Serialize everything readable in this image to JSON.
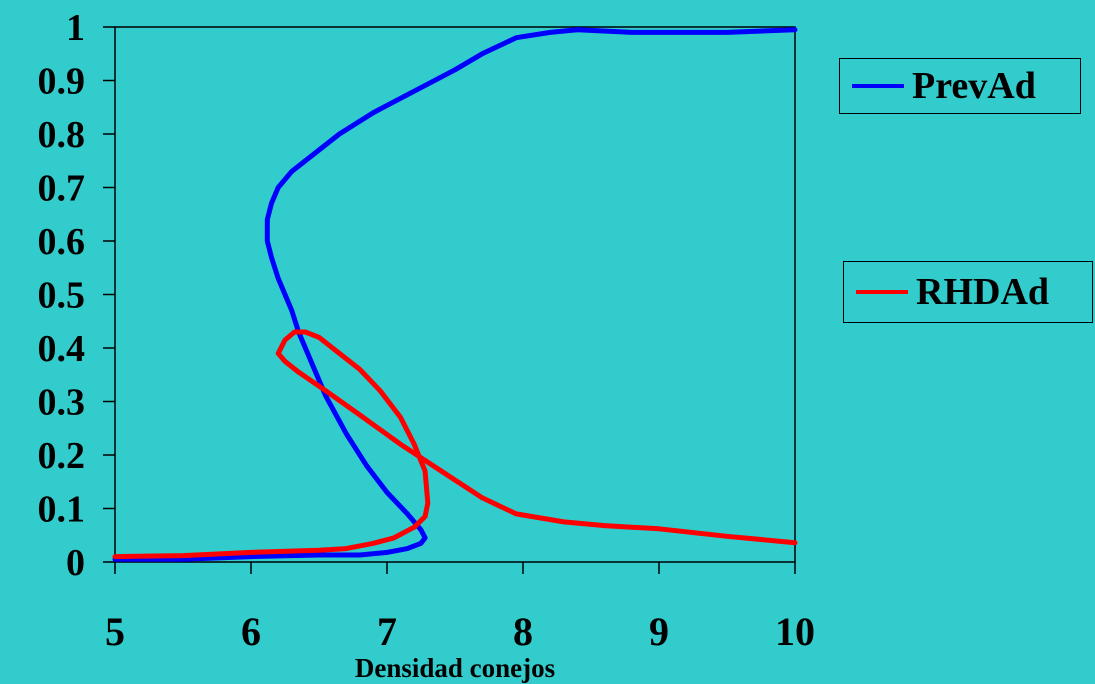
{
  "chart_data": {
    "type": "line",
    "title": "",
    "xlabel": "Densidad conejos",
    "ylabel": "",
    "xlim": [
      5,
      10
    ],
    "ylim": [
      0,
      1
    ],
    "x_ticks": [
      "5",
      "6",
      "7",
      "8",
      "9",
      "10"
    ],
    "y_ticks": [
      "0",
      "0.1",
      "0.2",
      "0.3",
      "0.4",
      "0.5",
      "0.6",
      "0.7",
      "0.8",
      "0.9",
      "1"
    ],
    "grid": false,
    "legend_position": "right",
    "colors": {
      "background": "#33cccc",
      "PrevAd": "#0000ff",
      "RHDAd": "#ff0000"
    },
    "series": [
      {
        "name": "PrevAd",
        "color": "#0000ff",
        "points": [
          [
            5.0,
            0.005
          ],
          [
            5.5,
            0.005
          ],
          [
            6.0,
            0.01
          ],
          [
            6.5,
            0.013
          ],
          [
            6.8,
            0.013
          ],
          [
            7.0,
            0.018
          ],
          [
            7.15,
            0.025
          ],
          [
            7.25,
            0.035
          ],
          [
            7.28,
            0.045
          ],
          [
            7.25,
            0.06
          ],
          [
            7.15,
            0.09
          ],
          [
            7.0,
            0.13
          ],
          [
            6.85,
            0.18
          ],
          [
            6.7,
            0.24
          ],
          [
            6.55,
            0.31
          ],
          [
            6.45,
            0.37
          ],
          [
            6.35,
            0.43
          ],
          [
            6.3,
            0.47
          ],
          [
            6.2,
            0.53
          ],
          [
            6.15,
            0.57
          ],
          [
            6.12,
            0.6
          ],
          [
            6.12,
            0.64
          ],
          [
            6.15,
            0.67
          ],
          [
            6.2,
            0.7
          ],
          [
            6.3,
            0.73
          ],
          [
            6.45,
            0.76
          ],
          [
            6.65,
            0.8
          ],
          [
            6.9,
            0.84
          ],
          [
            7.2,
            0.88
          ],
          [
            7.5,
            0.92
          ],
          [
            7.7,
            0.95
          ],
          [
            7.95,
            0.98
          ],
          [
            8.2,
            0.99
          ],
          [
            8.4,
            0.995
          ],
          [
            8.8,
            0.99
          ],
          [
            9.5,
            0.99
          ],
          [
            10.0,
            0.995
          ]
        ]
      },
      {
        "name": "RHDAd",
        "color": "#ff0000",
        "points": [
          [
            5.0,
            0.01
          ],
          [
            5.5,
            0.012
          ],
          [
            6.0,
            0.018
          ],
          [
            6.5,
            0.022
          ],
          [
            6.7,
            0.025
          ],
          [
            6.9,
            0.035
          ],
          [
            7.05,
            0.045
          ],
          [
            7.2,
            0.065
          ],
          [
            7.28,
            0.085
          ],
          [
            7.3,
            0.11
          ],
          [
            7.28,
            0.17
          ],
          [
            7.2,
            0.22
          ],
          [
            7.1,
            0.27
          ],
          [
            6.95,
            0.32
          ],
          [
            6.8,
            0.36
          ],
          [
            6.65,
            0.39
          ],
          [
            6.5,
            0.42
          ],
          [
            6.4,
            0.43
          ],
          [
            6.32,
            0.43
          ],
          [
            6.25,
            0.415
          ],
          [
            6.2,
            0.39
          ],
          [
            6.25,
            0.375
          ],
          [
            6.35,
            0.355
          ],
          [
            6.55,
            0.32
          ],
          [
            6.8,
            0.275
          ],
          [
            7.1,
            0.22
          ],
          [
            7.4,
            0.17
          ],
          [
            7.7,
            0.12
          ],
          [
            7.95,
            0.09
          ],
          [
            8.3,
            0.075
          ],
          [
            8.6,
            0.068
          ],
          [
            9.0,
            0.062
          ],
          [
            9.5,
            0.048
          ],
          [
            10.0,
            0.036
          ]
        ]
      }
    ]
  }
}
